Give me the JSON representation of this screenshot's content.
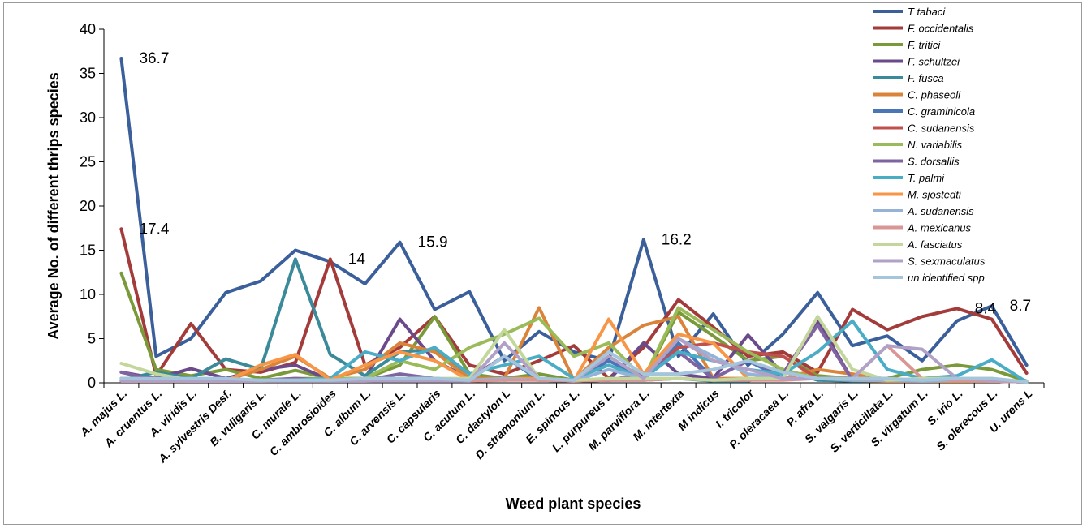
{
  "chart_data": {
    "type": "line",
    "title": "",
    "xlabel": "Weed plant species",
    "ylabel": "Average No. of different thrips species",
    "ylim": [
      0,
      40
    ],
    "yticks": [
      "0",
      "5",
      "10",
      "15",
      "20",
      "25",
      "30",
      "35",
      "40"
    ],
    "grid": false,
    "legend_position": "right",
    "categories": [
      "A. majus L.",
      "A. cruentus L.",
      "A. viridis L.",
      "A. sylvestris Desf.",
      "B. vuligaris L.",
      "C. murale L.",
      "C. ambrosioides",
      "C. album L.",
      "C. arvensis L.",
      "C. capsularis",
      "C. acutum L.",
      "C. dactylon L",
      "D. stramonium L.",
      "E. spinous L.",
      "L. purpureus L.",
      "M. parviflora L.",
      "M. intertexta",
      "M indicus",
      "I. tricolor",
      "P. oleracaea L.",
      "P. afra L.",
      "S. valgaris L.",
      "S. verticillata L.",
      "S. virgatum L.",
      "S. irio L.",
      "S. olerecous L.",
      "U. urens L"
    ],
    "series": [
      {
        "name": "T tabaci",
        "color": "#3a5f9a",
        "values": [
          36.7,
          3,
          5,
          10.2,
          11.5,
          15,
          13.7,
          11.2,
          15.9,
          8.3,
          10.3,
          2.5,
          5.8,
          3.5,
          2.5,
          16.2,
          3,
          7.8,
          2,
          5.5,
          10.2,
          4.2,
          5.3,
          2.5,
          7,
          8.7,
          2
        ]
      },
      {
        "name": "F. occidentalis",
        "color": "#a23b3a",
        "values": [
          17.4,
          0.8,
          6.7,
          1.5,
          1.2,
          2.3,
          14,
          2,
          4,
          7.5,
          2,
          1,
          2.5,
          4.2,
          0.5,
          4,
          9.4,
          6.3,
          3,
          3.5,
          1.2,
          8.3,
          6,
          7.5,
          8.4,
          7.2,
          1.1
        ]
      },
      {
        "name": "F.  tritici",
        "color": "#7a9a3a",
        "values": [
          12.4,
          1.5,
          0.8,
          1.5,
          0.5,
          1.4,
          0.5,
          0.5,
          2,
          7.5,
          1,
          0.5,
          1,
          0.3,
          0.3,
          0.5,
          8,
          5.3,
          2.5,
          3,
          0.8,
          0.5,
          0.5,
          1.5,
          2,
          1.5,
          0.2
        ]
      },
      {
        "name": "F. schultzei",
        "color": "#6a4a8a",
        "values": [
          1.2,
          0.5,
          1.6,
          0.5,
          1.5,
          2,
          0.3,
          0.5,
          7.2,
          2.5,
          0.5,
          3,
          0.5,
          0.2,
          0.3,
          4.5,
          1,
          0.5,
          5.4,
          1,
          7,
          0.3,
          0.2,
          0.2,
          0.3,
          0.3,
          0.1
        ]
      },
      {
        "name": "F. fusca",
        "color": "#3a8a9a",
        "values": [
          0.3,
          1.2,
          0.5,
          2.7,
          1.5,
          14,
          3.2,
          0.8,
          3.5,
          3.8,
          0.5,
          0.3,
          0.5,
          0.2,
          0.3,
          0.3,
          0.5,
          0.2,
          0.2,
          1.5,
          0.3,
          0.2,
          0.2,
          0.2,
          0.3,
          0.2,
          0.1
        ]
      },
      {
        "name": "C. phaseoli",
        "color": "#d9843a",
        "values": [
          0.5,
          0.3,
          0.2,
          0.3,
          1.5,
          3,
          0.5,
          1.5,
          4.5,
          3.5,
          0.5,
          0.5,
          8.5,
          0.3,
          4,
          6.5,
          7.5,
          0.5,
          0.5,
          0.5,
          1.5,
          1,
          0.3,
          0.2,
          0.2,
          0.2,
          0.1
        ]
      },
      {
        "name": "C. graminicola",
        "color": "#4a76b8",
        "values": [
          0.2,
          0.2,
          0.2,
          0.2,
          0.3,
          0.3,
          0.2,
          0.2,
          0.5,
          0.5,
          0.3,
          3,
          0.3,
          0.2,
          2.5,
          0.5,
          4.5,
          0.5,
          2.5,
          0.5,
          0.5,
          0.3,
          0.2,
          0.2,
          0.2,
          0.2,
          0.1
        ]
      },
      {
        "name": "C. sudanensis",
        "color": "#c0504d",
        "values": [
          0.2,
          0.2,
          0.2,
          0.2,
          0.2,
          0.3,
          0.5,
          0.3,
          0.3,
          0.5,
          0.3,
          0.5,
          0.5,
          0.2,
          0.3,
          0.5,
          4,
          4.5,
          3.5,
          3,
          0.5,
          0.5,
          0.3,
          0.2,
          0.2,
          0.2,
          0.1
        ]
      },
      {
        "name": "N. variabilis",
        "color": "#9bbb59",
        "values": [
          0.5,
          0.5,
          0.3,
          0.3,
          0.3,
          0.5,
          0.5,
          0.5,
          2.5,
          1.5,
          4,
          5.5,
          7.3,
          3,
          4.5,
          0.5,
          8.5,
          6,
          3.5,
          1.5,
          0.5,
          0.5,
          0.3,
          0.2,
          0.2,
          0.2,
          0.1
        ]
      },
      {
        "name": "S. dorsallis",
        "color": "#8064a2",
        "values": [
          1.2,
          0.3,
          0.5,
          0.3,
          0.3,
          0.5,
          0.3,
          0.3,
          1,
          0.5,
          0.3,
          0.5,
          0.3,
          0.2,
          0.3,
          1,
          3.5,
          0.5,
          2.5,
          1,
          6.5,
          0.3,
          0.2,
          0.2,
          0.2,
          0.2,
          0.1
        ]
      },
      {
        "name": "T. palmi",
        "color": "#4bacc6",
        "values": [
          0.5,
          0.3,
          0.5,
          0.3,
          0.3,
          0.3,
          0.5,
          3.5,
          2.5,
          4,
          1,
          2,
          3,
          0.5,
          2,
          0.5,
          3.5,
          2.5,
          1.5,
          1,
          3.5,
          7,
          1.5,
          0.5,
          0.8,
          2.6,
          0.1
        ]
      },
      {
        "name": "M. sjostedti",
        "color": "#f79646",
        "values": [
          0.2,
          0.2,
          0.2,
          0.2,
          2,
          3.2,
          0.3,
          2,
          3.5,
          2.5,
          0.3,
          0.5,
          0.5,
          0.2,
          7.2,
          1,
          5.5,
          4.5,
          0.5,
          0.5,
          0.5,
          0.3,
          0.2,
          0.2,
          0.2,
          0.2,
          0.1
        ]
      },
      {
        "name": "A. sudanensis",
        "color": "#95b3d7",
        "values": [
          0.5,
          0.3,
          0.2,
          0.2,
          0.2,
          0.3,
          0.3,
          0.3,
          0.5,
          0.5,
          0.3,
          0.5,
          0.3,
          0.2,
          1.5,
          0.5,
          5,
          3,
          1,
          0.5,
          0.5,
          0.3,
          0.3,
          0.2,
          0.3,
          0.2,
          0.1
        ]
      },
      {
        "name": "A. mexicanus",
        "color": "#d99694",
        "values": [
          0.2,
          0.2,
          0.2,
          0.2,
          0.2,
          0.2,
          0.2,
          0.2,
          0.3,
          0.3,
          0.2,
          0.3,
          0.3,
          0.2,
          0.3,
          0.3,
          0.5,
          0.3,
          0.3,
          0.3,
          0.5,
          0.5,
          4.2,
          0.5,
          0.3,
          0.2,
          0.1
        ]
      },
      {
        "name": "A. fasciatus",
        "color": "#c3d69b",
        "values": [
          2.2,
          1,
          0.3,
          0.3,
          0.3,
          0.3,
          0.3,
          0.3,
          0.5,
          0.5,
          0.5,
          6,
          0.5,
          0.3,
          0.5,
          0.5,
          0.5,
          0.3,
          0.5,
          0.5,
          7.5,
          1.5,
          0.3,
          0.5,
          0.5,
          0.5,
          0.1
        ]
      },
      {
        "name": "S. sexmaculatus",
        "color": "#b2a1c7",
        "values": [
          0.2,
          0.2,
          0.2,
          0.2,
          0.2,
          0.2,
          0.2,
          0.2,
          0.2,
          0.2,
          0.2,
          4.5,
          0.5,
          0.3,
          3,
          0.5,
          5,
          2.5,
          1.5,
          0.5,
          0.5,
          0.5,
          4.2,
          3.8,
          0.5,
          0.3,
          0.1
        ]
      },
      {
        "name": "un identified spp",
        "color": "#a5c5dc",
        "values": [
          0.5,
          0.5,
          0.5,
          0.5,
          0.3,
          0.3,
          0.3,
          0.5,
          0.5,
          0.5,
          0.3,
          3,
          0.5,
          0.3,
          3.5,
          1,
          1,
          1.5,
          2.5,
          1.2,
          0.5,
          0.5,
          0.5,
          0.3,
          0.5,
          0.5,
          0.1
        ]
      }
    ],
    "annotations": [
      {
        "text": "36.7",
        "category": "A. majus L.",
        "value": 36.7
      },
      {
        "text": "17.4",
        "category": "A. majus L.",
        "value": 17.4
      },
      {
        "text": "14",
        "category": "C. ambrosioides",
        "value": 14
      },
      {
        "text": "15.9",
        "category": "C. arvensis L.",
        "value": 15.9
      },
      {
        "text": "16.2",
        "category": "M. parviflora L.",
        "value": 16.2
      },
      {
        "text": "8.4",
        "category": "S. irio L.",
        "value": 8.4
      },
      {
        "text": "8.7",
        "category": "S. olerecous L.",
        "value": 8.7
      }
    ]
  }
}
